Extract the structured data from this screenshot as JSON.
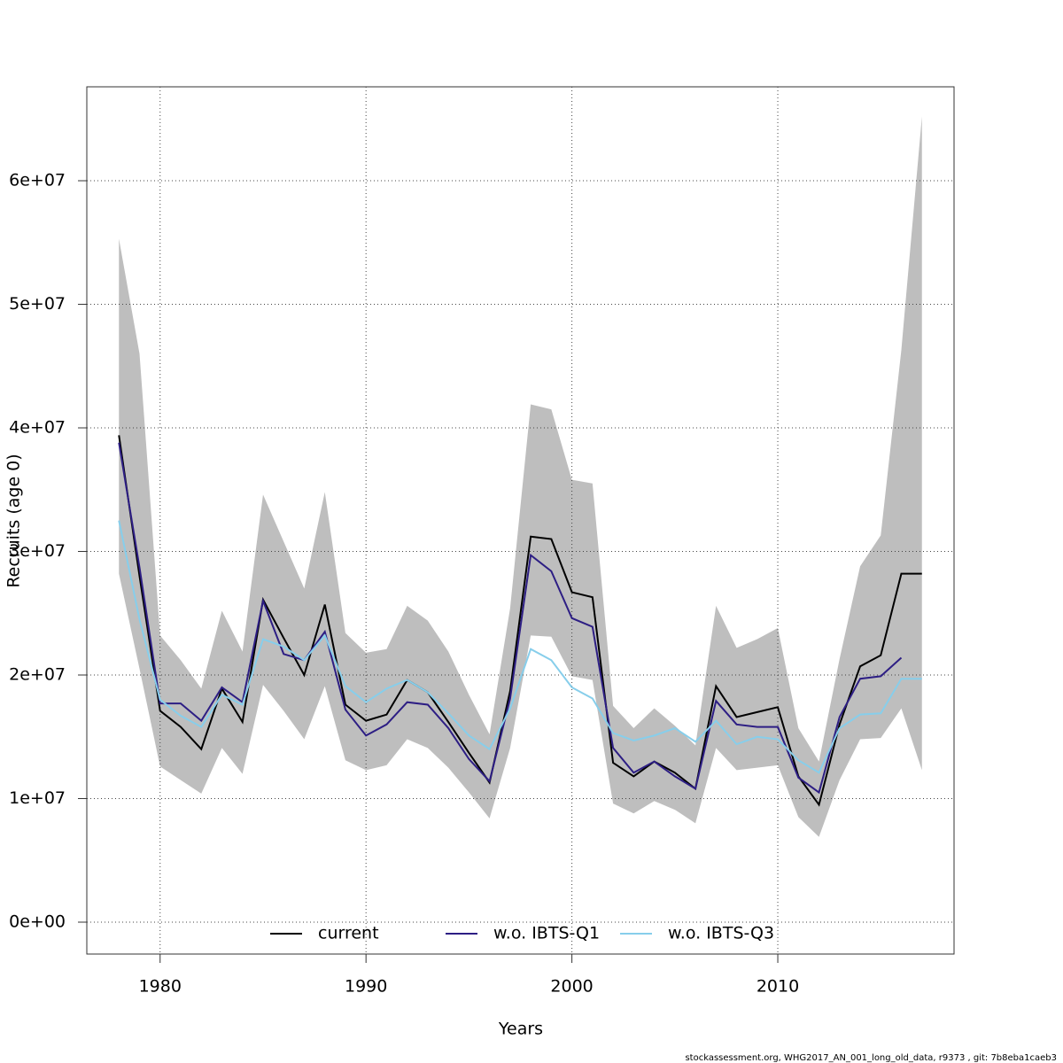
{
  "chart_data": {
    "type": "line",
    "xlabel": "Years",
    "ylabel": "Recruits (age 0)",
    "footer": "stockassessment.org, WHG2017_AN_001_long_old_data, r9373 , git: 7b8eba1caeb3",
    "x": [
      1978,
      1979,
      1980,
      1981,
      1982,
      1983,
      1984,
      1985,
      1986,
      1987,
      1988,
      1989,
      1990,
      1991,
      1992,
      1993,
      1994,
      1995,
      1996,
      1997,
      1998,
      1999,
      2000,
      2001,
      2002,
      2003,
      2004,
      2005,
      2006,
      2007,
      2008,
      2009,
      2010,
      2011,
      2012,
      2013,
      2014,
      2015,
      2016,
      2017
    ],
    "band": {
      "color": "#bebebe",
      "upper": [
        55300000,
        46000000,
        23200000,
        21200000,
        18900000,
        25200000,
        21900000,
        34600000,
        30800000,
        27000000,
        34800000,
        23400000,
        21800000,
        22100000,
        25600000,
        24400000,
        21900000,
        18400000,
        15200000,
        25400000,
        41900000,
        41500000,
        35800000,
        35500000,
        17500000,
        15700000,
        17300000,
        15900000,
        14300000,
        25600000,
        22200000,
        22900000,
        23800000,
        15700000,
        13000000,
        21300000,
        28800000,
        31300000,
        46300000,
        65200000
      ],
      "lower": [
        28200000,
        20500000,
        12600000,
        11500000,
        10400000,
        14100000,
        12000000,
        19200000,
        17100000,
        14800000,
        19100000,
        13100000,
        12300000,
        12700000,
        14800000,
        14100000,
        12500000,
        10500000,
        8400000,
        14100000,
        23200000,
        23100000,
        19900000,
        19600000,
        9600000,
        8800000,
        9800000,
        9100000,
        8000000,
        14100000,
        12300000,
        12500000,
        12700000,
        8500000,
        6900000,
        11500000,
        14800000,
        14900000,
        17300000,
        12300000
      ]
    },
    "series": [
      {
        "name": "current",
        "color": "#000000",
        "values": [
          39400000,
          28000000,
          17100000,
          15800000,
          14000000,
          18900000,
          16200000,
          26100000,
          23000000,
          20000000,
          25700000,
          17600000,
          16300000,
          16800000,
          19600000,
          18600000,
          16200000,
          13700000,
          11300000,
          18700000,
          31200000,
          31000000,
          26700000,
          26300000,
          12900000,
          11800000,
          13000000,
          12100000,
          10800000,
          19100000,
          16600000,
          17000000,
          17400000,
          11800000,
          9500000,
          16000000,
          20700000,
          21600000,
          28200000,
          28200000
        ]
      },
      {
        "name": "w.o. IBTS-Q1",
        "color": "#2d1e84",
        "values": [
          38800000,
          28700000,
          17700000,
          17700000,
          16300000,
          19000000,
          17800000,
          26000000,
          21700000,
          21200000,
          23500000,
          17200000,
          15100000,
          16000000,
          17800000,
          17600000,
          15700000,
          13200000,
          11400000,
          18100000,
          29700000,
          28400000,
          24600000,
          23900000,
          14100000,
          12100000,
          13000000,
          11800000,
          10800000,
          17900000,
          16000000,
          15800000,
          15800000,
          11700000,
          10500000,
          16600000,
          19700000,
          19900000,
          21400000,
          null
        ]
      },
      {
        "name": "w.o. IBTS-Q3",
        "color": "#87ceeb",
        "values": [
          32500000,
          24500000,
          18000000,
          16700000,
          15800000,
          18400000,
          17600000,
          22900000,
          22300000,
          21200000,
          23200000,
          19100000,
          17800000,
          18900000,
          19600000,
          18600000,
          16900000,
          15100000,
          14000000,
          17300000,
          22100000,
          21200000,
          19000000,
          18100000,
          15300000,
          14700000,
          15100000,
          15700000,
          14600000,
          16300000,
          14400000,
          15000000,
          14800000,
          13100000,
          12100000,
          15700000,
          16800000,
          16900000,
          19700000,
          19700000
        ]
      }
    ],
    "xlim": [
      1976.44,
      2018.56
    ],
    "ylim": [
      -2580000,
      67600000
    ],
    "xticks": [
      1980,
      1990,
      2000,
      2010
    ],
    "yticks": [
      {
        "value": 0,
        "label": "0e+00"
      },
      {
        "value": 10000000,
        "label": "1e+07"
      },
      {
        "value": 20000000,
        "label": "2e+07"
      },
      {
        "value": 30000000,
        "label": "3e+07"
      },
      {
        "value": 40000000,
        "label": "4e+07"
      },
      {
        "value": 50000000,
        "label": "5e+07"
      },
      {
        "value": 60000000,
        "label": "6e+07"
      }
    ],
    "grid": true,
    "legend": "bottom"
  }
}
